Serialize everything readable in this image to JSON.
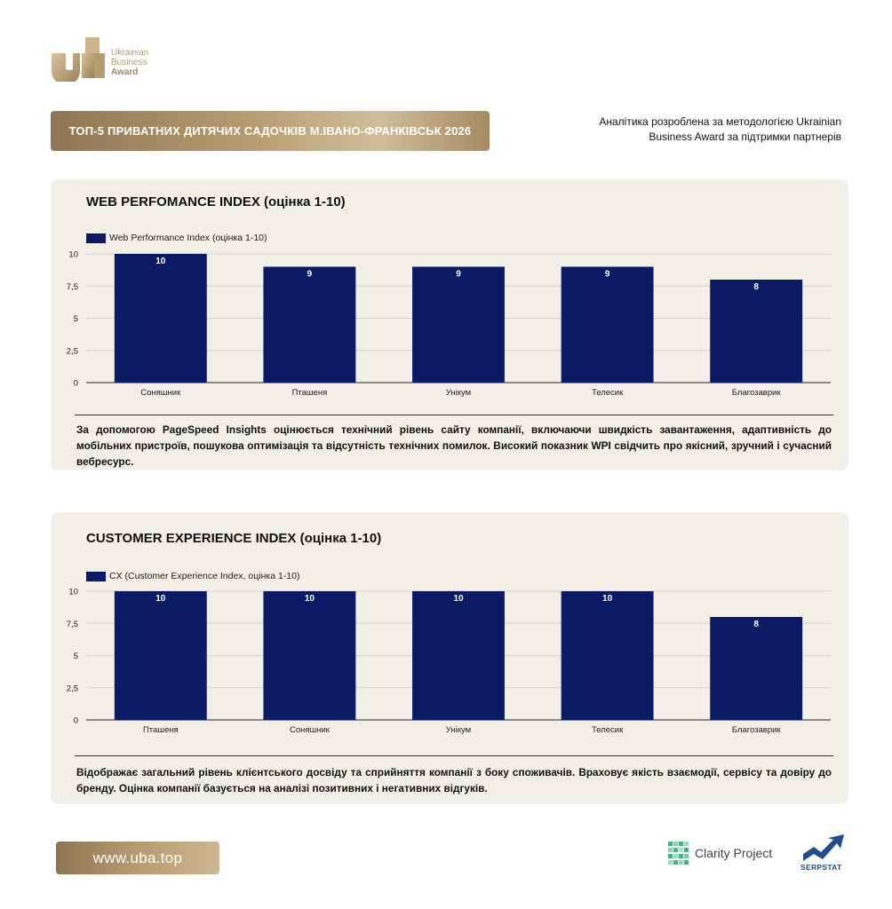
{
  "logo": {
    "lines": [
      "Ukrainian",
      "Business",
      "Award"
    ]
  },
  "header": {
    "title": "ТОП-5 ПРИВАТНИХ ДИТЯЧИХ САДОЧКІВ М.ІВАНО-ФРАНКІВСЬК 2026",
    "note_line1": "Аналітика розроблена за методологією Ukrainian",
    "note_line2": "Business Award за підтримки партнерів"
  },
  "colors": {
    "bar": "#0a1a64",
    "panel": "#f1efe6",
    "gold": "#b79c72"
  },
  "chart_data": [
    {
      "type": "bar",
      "title": "WEB PERFOMANCE INDEX (оцінка 1-10)",
      "legend": "Web Performance Index (оцінка 1-10)",
      "categories": [
        "Соняшник",
        "Пташеня",
        "Унікум",
        "Телесик",
        "Благозаврик"
      ],
      "values": [
        10,
        9,
        9,
        9,
        8
      ],
      "value_labels": [
        "10",
        "9",
        "9",
        "9",
        "8"
      ],
      "y_ticks": [
        "0",
        "2,5",
        "5",
        "7,5",
        "10"
      ],
      "ylim": [
        0,
        10
      ],
      "grid": true,
      "legend_position": "top-left"
    },
    {
      "type": "bar",
      "title": "CUSTOMER EXPERIENCE INDEX (оцінка 1-10)",
      "legend": "CX (Customer Experience Index, оцінка 1-10)",
      "categories": [
        "Пташеня",
        "Соняшник",
        "Унікум",
        "Телесик",
        "Благозаврик"
      ],
      "values": [
        10,
        10,
        10,
        10,
        8
      ],
      "value_labels": [
        "10",
        "10",
        "10",
        "10",
        "8"
      ],
      "y_ticks": [
        "0",
        "2,5",
        "5",
        "7,5",
        "10"
      ],
      "ylim": [
        0,
        10
      ],
      "grid": true,
      "legend_position": "top-left"
    }
  ],
  "descriptions": {
    "wpi": "За допомогою PageSpeed Insights оцінюється технічний рівень сайту компанії, включаючи швидкість завантаження, адаптивність до мобільних пристроїв, пошукова оптимізація та відсутність технічних помилок. Високий показник WPI свідчить про якісний, зручний і сучасний вебресурс.",
    "cx": "Відображає загальний рівень клієнтського досвіду та сприйняття компанії з боку споживачів. Враховує якість взаємодії, сервісу та довіру до бренду. Оцінка компанії базується на аналізі позитивних і негативних відгуків."
  },
  "footer": {
    "url": "www.uba.top",
    "partner1": "Clarity Project",
    "partner2": "SERPSTAT"
  }
}
